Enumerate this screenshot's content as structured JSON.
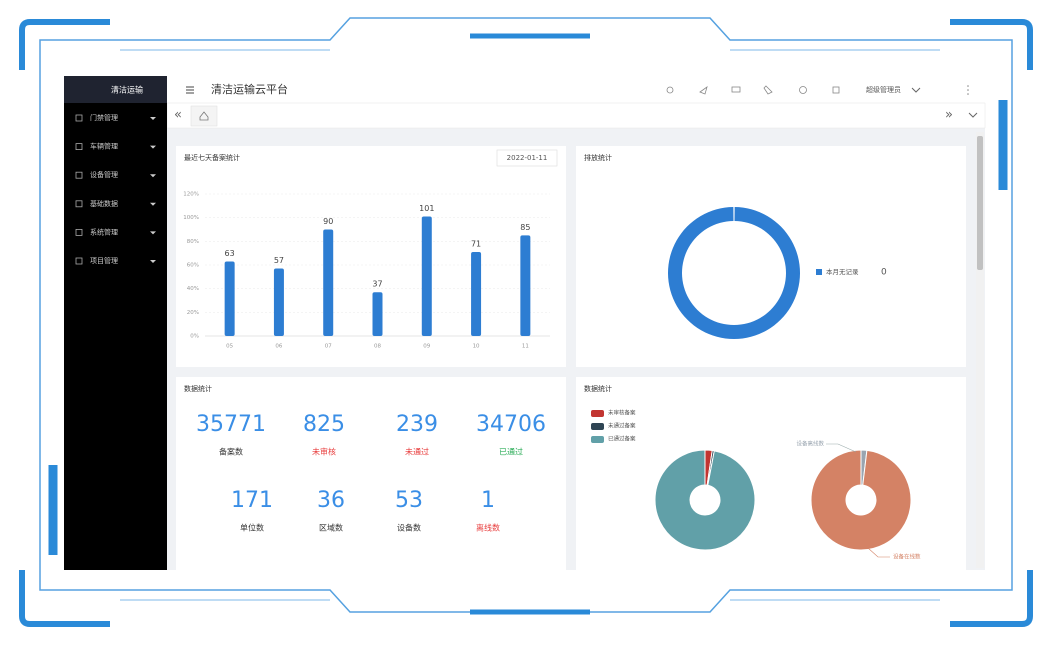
{
  "sidebar": {
    "title": "清洁运输",
    "menu": [
      "门禁管理",
      "车辆管理",
      "设备管理",
      "基础数据",
      "系统管理",
      "项目管理"
    ]
  },
  "header": {
    "title": "清洁运输云平台",
    "user": "超级管理员"
  },
  "tabs": {
    "prev": "«",
    "next": "»"
  },
  "bar_card": {
    "title": "最近七天备案统计",
    "date": "2022-01-11",
    "categories": [
      "05",
      "06",
      "07",
      "08",
      "09",
      "10",
      "11"
    ],
    "values": [
      63,
      57,
      90,
      37,
      101,
      71,
      85
    ],
    "color": "#2d7dd2",
    "ylim": [
      0,
      120
    ],
    "yticks": [
      {
        "value": 0,
        "label": "0%"
      },
      {
        "value": 20,
        "label": "20%"
      },
      {
        "value": 40,
        "label": "40%"
      },
      {
        "value": 60,
        "label": "60%"
      },
      {
        "value": 80,
        "label": "80%"
      },
      {
        "value": 100,
        "label": "100%"
      },
      {
        "value": 120,
        "label": "120%"
      }
    ]
  },
  "emission_card": {
    "title": "排放统计",
    "legend": "本月无记录",
    "value": 0,
    "color": "#2d7dd2"
  },
  "stats_card": {
    "title": "数据统计",
    "stats": [
      {
        "value": 35771,
        "label": "备案数",
        "color": "#333333"
      },
      {
        "value": 825,
        "label": "未审核",
        "color": "#e83d3d"
      },
      {
        "value": 239,
        "label": "未通过",
        "color": "#e83d3d"
      },
      {
        "value": 34706,
        "label": "已通过",
        "color": "#2fae5b"
      },
      {
        "value": 171,
        "label": "单位数",
        "color": "#333333"
      },
      {
        "value": 36,
        "label": "区域数",
        "color": "#333333"
      },
      {
        "value": 53,
        "label": "设备数",
        "color": "#333333"
      },
      {
        "value": 1,
        "label": "离线数",
        "color": "#e83d3d"
      }
    ]
  },
  "pie_card": {
    "title": "数据统计",
    "pies": [
      {
        "slices": [
          {
            "name": "未审核备案",
            "value": 825,
            "color": "#c23531"
          },
          {
            "name": "未通过备案",
            "value": 239,
            "color": "#2f4554"
          },
          {
            "name": "已通过备案",
            "value": 34706,
            "color": "#61a0a8"
          }
        ]
      },
      {
        "slices": [
          {
            "name": "设备离线数",
            "value": 1,
            "color": "#9aa5b0"
          },
          {
            "name": "设备在线数",
            "value": 52,
            "color": "#d48265"
          }
        ]
      }
    ]
  }
}
